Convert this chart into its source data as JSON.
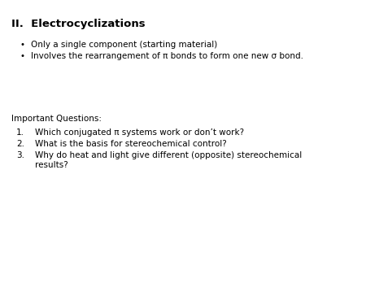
{
  "title": "II.  Electrocyclizations",
  "bullet1": "Only a single component (starting material)",
  "bullet2": "Involves the rearrangement of π bonds to form one new σ bond.",
  "section_label": "Important Questions:",
  "q1": "Which conjugated π systems work or don’t work?",
  "q2": "What is the basis for stereochemical control?",
  "q3": "Why do heat and light give different (opposite) stereochemical",
  "q3b": "results?",
  "bg_color": "#ffffff",
  "text_color": "#000000",
  "title_fontsize": 9.5,
  "body_fontsize": 7.5,
  "font_family": "DejaVu Sans"
}
